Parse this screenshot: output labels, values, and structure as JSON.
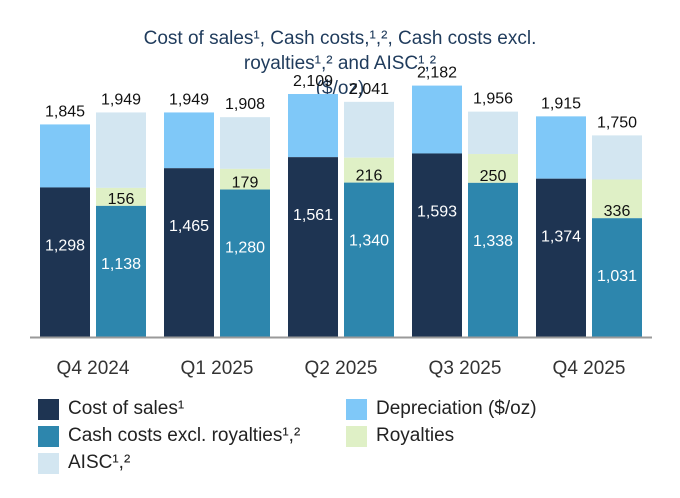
{
  "colors": {
    "cost_of_sales": "#1e3452",
    "cash_costs": "#2d86ad",
    "depreciation": "#7fc8f8",
    "royalties": "#dff0c6",
    "aisc": "#d3e6f1",
    "axis": "#9a9a9a",
    "title": "#1f3b5c"
  },
  "chart_data": {
    "type": "bar",
    "title_lines": [
      "Cost of sales¹, Cash costs,¹,², Cash costs excl.",
      "royalties¹,² and AISC¹,²",
      "($/oz)"
    ],
    "categories": [
      "Q4 2024",
      "Q1 2025",
      "Q2 2025",
      "Q3 2025",
      "Q4 2025"
    ],
    "cost_of_sales": [
      1298,
      1465,
      1561,
      1593,
      1374
    ],
    "depreciation_total": [
      1845,
      1949,
      2109,
      2182,
      1915
    ],
    "cash_costs_excl_royalties": [
      1138,
      1280,
      1340,
      1338,
      1031
    ],
    "royalties": [
      156,
      179,
      216,
      250,
      336
    ],
    "aisc": [
      1949,
      1908,
      2041,
      1956,
      1750
    ],
    "labels": {
      "cost_of_sales": [
        "1,298",
        "1,465",
        "1,561",
        "1,593",
        "1,374"
      ],
      "depreciation_total": [
        "1,845",
        "1,949",
        "2,109",
        "2,182",
        "1,915"
      ],
      "cash_costs": [
        "1,138",
        "1,280",
        "1,340",
        "1,338",
        "1,031"
      ],
      "royalties": [
        "156",
        "179",
        "216",
        "250",
        "336"
      ],
      "aisc": [
        "1,949",
        "1,908",
        "2,041",
        "1,956",
        "1,750"
      ]
    },
    "ylim": [
      0,
      2300
    ],
    "xlabel": "",
    "ylabel": "",
    "grid": false,
    "legend_position": "bottom",
    "legend": {
      "cost_of_sales": "Cost of sales¹",
      "depreciation": "Depreciation ($/oz)",
      "cash_costs": "Cash costs excl. royalties¹,²",
      "royalties": "Royalties",
      "aisc": "AISC¹,²"
    }
  }
}
